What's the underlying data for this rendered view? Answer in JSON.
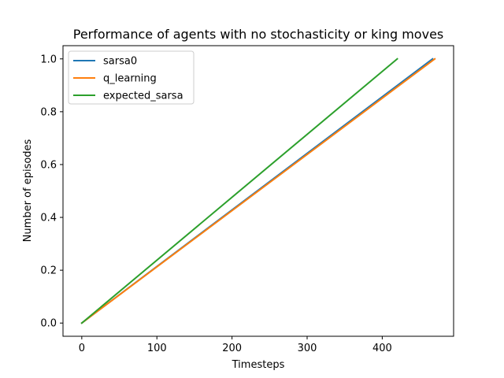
{
  "chart_data": {
    "type": "line",
    "title": "Performance of agents with no stochasticity or king moves",
    "xlabel": "Timesteps",
    "ylabel": "Number of episodes",
    "xlim": [
      -25,
      495
    ],
    "ylim": [
      -0.05,
      1.05
    ],
    "xticks": [
      0,
      100,
      200,
      300,
      400
    ],
    "yticks": [
      0.0,
      0.2,
      0.4,
      0.6,
      0.8,
      1.0
    ],
    "xtick_labels": [
      "0",
      "100",
      "200",
      "300",
      "400"
    ],
    "ytick_labels": [
      "0.0",
      "0.2",
      "0.4",
      "0.6",
      "0.8",
      "1.0"
    ],
    "grid": false,
    "legend_position": "upper-left",
    "series": [
      {
        "name": "sarsa0",
        "color": "#1f77b4",
        "x": [
          0,
          467
        ],
        "y": [
          0.0,
          1.0
        ]
      },
      {
        "name": "q_learning",
        "color": "#ff7f0e",
        "x": [
          0,
          470
        ],
        "y": [
          0.0,
          1.0
        ]
      },
      {
        "name": "expected_sarsa",
        "color": "#2ca02c",
        "x": [
          0,
          420
        ],
        "y": [
          0.0,
          1.0
        ]
      }
    ]
  }
}
